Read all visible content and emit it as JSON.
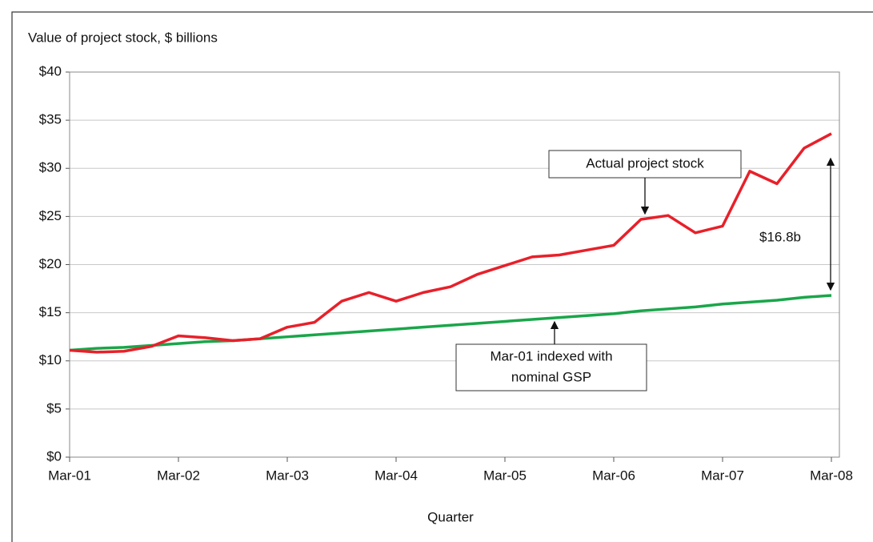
{
  "chart_data": {
    "type": "line",
    "y_label": "Value of project stock, $ billions",
    "x_label": "Quarter",
    "categories": [
      "Mar-01",
      null,
      null,
      null,
      "Mar-02",
      null,
      null,
      null,
      "Mar-03",
      null,
      null,
      null,
      "Mar-04",
      null,
      null,
      null,
      "Mar-05",
      null,
      null,
      null,
      "Mar-06",
      null,
      null,
      null,
      "Mar-07",
      null,
      null,
      null,
      "Mar-08"
    ],
    "series": [
      {
        "color": "#e8202a",
        "values": [
          11.1,
          10.9,
          11.0,
          11.5,
          12.6,
          12.4,
          12.1,
          12.3,
          13.5,
          14.0,
          16.2,
          17.1,
          16.2,
          17.1,
          17.7,
          19.0,
          19.9,
          20.8,
          21.0,
          21.5,
          22.0,
          24.7,
          25.1,
          23.3,
          24.0,
          29.7,
          28.4,
          32.1,
          33.6
        ]
      },
      {
        "color": "#1aa64a",
        "values": [
          11.1,
          11.3,
          11.4,
          11.6,
          11.8,
          12.0,
          12.1,
          12.3,
          12.5,
          12.7,
          12.9,
          13.1,
          13.3,
          13.5,
          13.7,
          13.9,
          14.1,
          14.3,
          14.5,
          14.7,
          14.9,
          15.2,
          15.4,
          15.6,
          15.9,
          16.1,
          16.3,
          16.6,
          16.8
        ]
      }
    ],
    "ylim": [
      0,
      40
    ],
    "yticks": [
      {
        "value": 0,
        "label": "$0"
      },
      {
        "value": 5,
        "label": "$5"
      },
      {
        "value": 10,
        "label": "$10"
      },
      {
        "value": 15,
        "label": "$15"
      },
      {
        "value": 20,
        "label": "$20"
      },
      {
        "value": 25,
        "label": "$25"
      },
      {
        "value": 30,
        "label": "$30"
      },
      {
        "value": 35,
        "label": "$35"
      },
      {
        "value": 40,
        "label": "$40"
      }
    ],
    "grid": true,
    "annotations": [
      {
        "text": "Actual project stock"
      },
      {
        "lines": [
          "Mar-01 indexed with",
          "nominal GSP"
        ]
      },
      {
        "text": "$16.8b"
      }
    ]
  }
}
